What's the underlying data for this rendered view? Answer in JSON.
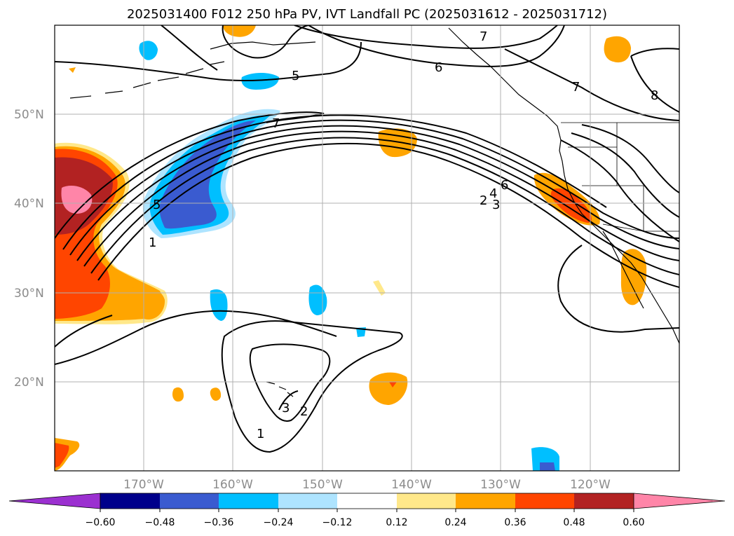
{
  "title": "2025031400 F012 250 hPa PV, IVT Landfall PC (2025031612 - 2025031712)",
  "map": {
    "lat_labels": [
      "50°N",
      "40°N",
      "30°N",
      "20°N"
    ],
    "lon_labels": [
      "170°W",
      "160°W",
      "150°W",
      "140°W",
      "130°W",
      "120°W"
    ],
    "contour_labels": [
      "5",
      "7",
      "6",
      "7",
      "8",
      "7",
      "5",
      "1",
      "6",
      "4",
      "2",
      "3",
      "3",
      "2",
      "1"
    ]
  },
  "colorbar": {
    "ticks": [
      "−0.60",
      "−0.48",
      "−0.36",
      "−0.24",
      "−0.12",
      "0.12",
      "0.24",
      "0.36",
      "0.48",
      "0.60"
    ],
    "colors": [
      "#9b30d0",
      "#00008b",
      "#3a5bd0",
      "#00bfff",
      "#aee4ff",
      "#ffffff",
      "#ffe88a",
      "#ffa500",
      "#ff4500",
      "#b22222",
      "#ff85a8",
      "#ff85a8"
    ]
  }
}
